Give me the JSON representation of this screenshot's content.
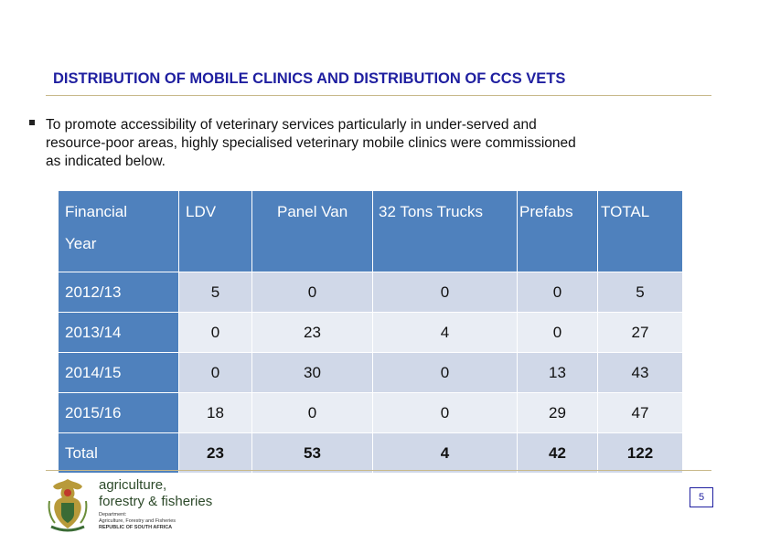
{
  "title": "DISTRIBUTION OF MOBILE CLINICS AND DISTRIBUTION OF CCS VETS",
  "bullet": {
    "line1": "To promote accessibility of veterinary  services particularly in under-served  and",
    "line2": "resource-poor areas, highly specialised  veterinary mobile clinics were commissioned",
    "line3": "as indicated below."
  },
  "table": {
    "headers": {
      "year_line1": "Financial",
      "year_line2": "Year",
      "ldv": "LDV",
      "panel_van": "Panel Van",
      "trucks": "32 Tons Trucks",
      "prefabs": "Prefabs",
      "total": "TOTAL"
    },
    "rows": [
      {
        "year": "2012/13",
        "ldv": "5",
        "panel_van": "0",
        "trucks": "0",
        "prefabs": "0",
        "total": "5"
      },
      {
        "year": "2013/14",
        "ldv": "0",
        "panel_van": "23",
        "trucks": "4",
        "prefabs": "0",
        "total": "27"
      },
      {
        "year": "2014/15",
        "ldv": "0",
        "panel_van": "30",
        "trucks": "0",
        "prefabs": "13",
        "total": "43"
      },
      {
        "year": "2015/16",
        "ldv": "18",
        "panel_van": "0",
        "trucks": "0",
        "prefabs": "29",
        "total": "47"
      },
      {
        "year": "Total",
        "ldv": "23",
        "panel_van": "53",
        "trucks": "4",
        "prefabs": "42",
        "total": "122"
      }
    ]
  },
  "logo": {
    "name_line1": "agriculture,",
    "name_line2": "forestry & fisheries",
    "sub_line1": "Department:",
    "sub_line2": "Agriculture, Forestry and Fisheries",
    "sub_line3": "REPUBLIC OF SOUTH AFRICA",
    "icon": "coat-of-arms-icon"
  },
  "page_number": "5",
  "colors": {
    "title": "#1f1fa0",
    "header": "#4f81bd",
    "row_odd": "#d0d8e8",
    "row_even": "#e9edf4"
  }
}
